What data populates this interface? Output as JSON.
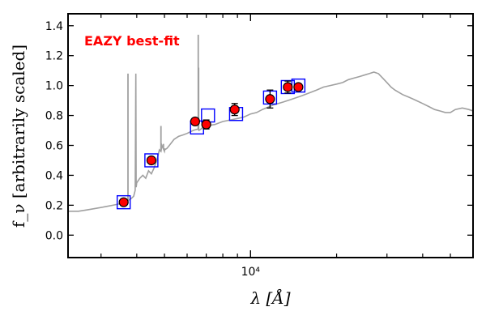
{
  "chart_data": {
    "type": "scatter",
    "title": "",
    "xlabel": "λ [Å]",
    "ylabel": "f_ν [arbitrarily scaled]",
    "x_scale": "log",
    "xlim": [
      2300,
      60000
    ],
    "ylim": [
      -0.15,
      1.48
    ],
    "x_tick_labels": [
      {
        "value": 10000,
        "label": "10⁴"
      }
    ],
    "x_minor_ticks": [
      3000,
      4000,
      5000,
      6000,
      7000,
      8000,
      9000,
      20000,
      30000,
      40000,
      50000
    ],
    "y_ticks": [
      0.0,
      0.2,
      0.4,
      0.6,
      0.8,
      1.0,
      1.2,
      1.4
    ],
    "y_tick_labels": [
      "0.0",
      "0.2",
      "0.4",
      "0.6",
      "0.8",
      "1.0",
      "1.2",
      "1.4"
    ],
    "grid": false,
    "annotation": {
      "text": "EAZY best-fit",
      "color": "#ff0000",
      "position": "top-left"
    },
    "colors": {
      "template": "#a0a0a0",
      "model": "#0000ff",
      "observed_fill": "#ff0000",
      "errorbar": "#000000"
    },
    "series": [
      {
        "kind": "line",
        "x": [
          2300,
          2500,
          2700,
          2900,
          3100,
          3300,
          3500,
          3700,
          3800,
          3900,
          3950,
          3970,
          3980,
          4000,
          4100,
          4200,
          4300,
          4400,
          4500,
          4600,
          4700,
          4800,
          4861,
          4900,
          5000,
          5007,
          5100,
          5200,
          5400,
          5600,
          5800,
          6000,
          6300,
          6563,
          6600,
          6717,
          6800,
          7000,
          7500,
          8000,
          8500,
          9000,
          9500,
          10000,
          10500,
          11000,
          12000,
          13000,
          14000,
          15000,
          16000,
          17000,
          18000,
          19000,
          20000,
          21000,
          22000,
          23000,
          24000,
          25000,
          26000,
          27000,
          28000,
          29000,
          30000,
          31000,
          32000,
          34000,
          36000,
          38000,
          40000,
          42000,
          44000,
          46000,
          48000,
          50000,
          52000,
          55000,
          58000,
          60000
        ],
        "y": [
          0.16,
          0.16,
          0.17,
          0.18,
          0.19,
          0.2,
          0.21,
          0.23,
          0.24,
          0.26,
          0.3,
          1.08,
          0.32,
          0.35,
          0.38,
          0.4,
          0.38,
          0.43,
          0.41,
          0.45,
          0.5,
          0.57,
          0.56,
          0.6,
          0.56,
          0.57,
          0.58,
          0.6,
          0.64,
          0.66,
          0.67,
          0.68,
          0.7,
          0.71,
          0.7,
          0.71,
          0.72,
          0.73,
          0.74,
          0.76,
          0.77,
          0.78,
          0.79,
          0.81,
          0.82,
          0.84,
          0.87,
          0.89,
          0.91,
          0.93,
          0.95,
          0.97,
          0.99,
          1.0,
          1.01,
          1.02,
          1.04,
          1.05,
          1.06,
          1.07,
          1.08,
          1.09,
          1.08,
          1.05,
          1.02,
          0.99,
          0.97,
          0.94,
          0.92,
          0.9,
          0.88,
          0.86,
          0.84,
          0.83,
          0.82,
          0.82,
          0.84,
          0.85,
          0.84,
          0.83
        ]
      },
      {
        "kind": "emission-lines",
        "x": [
          3727,
          4861,
          4959,
          5007,
          6563,
          6583
        ],
        "y": [
          1.08,
          0.73,
          0.61,
          0.58,
          1.34,
          1.12
        ]
      },
      {
        "kind": "model-squares",
        "x": [
          3600,
          4500,
          6500,
          7100,
          8900,
          11700,
          13500,
          14700
        ],
        "y": [
          0.22,
          0.5,
          0.72,
          0.8,
          0.81,
          0.92,
          0.99,
          1.0
        ]
      },
      {
        "kind": "observed-points",
        "x": [
          3600,
          4500,
          6400,
          7000,
          8800,
          11700,
          13500,
          14700
        ],
        "y": [
          0.22,
          0.5,
          0.76,
          0.74,
          0.84,
          0.91,
          0.99,
          0.99
        ],
        "yerr": [
          0.02,
          0.02,
          0.02,
          0.03,
          0.04,
          0.06,
          0.04,
          0.02
        ]
      }
    ]
  }
}
